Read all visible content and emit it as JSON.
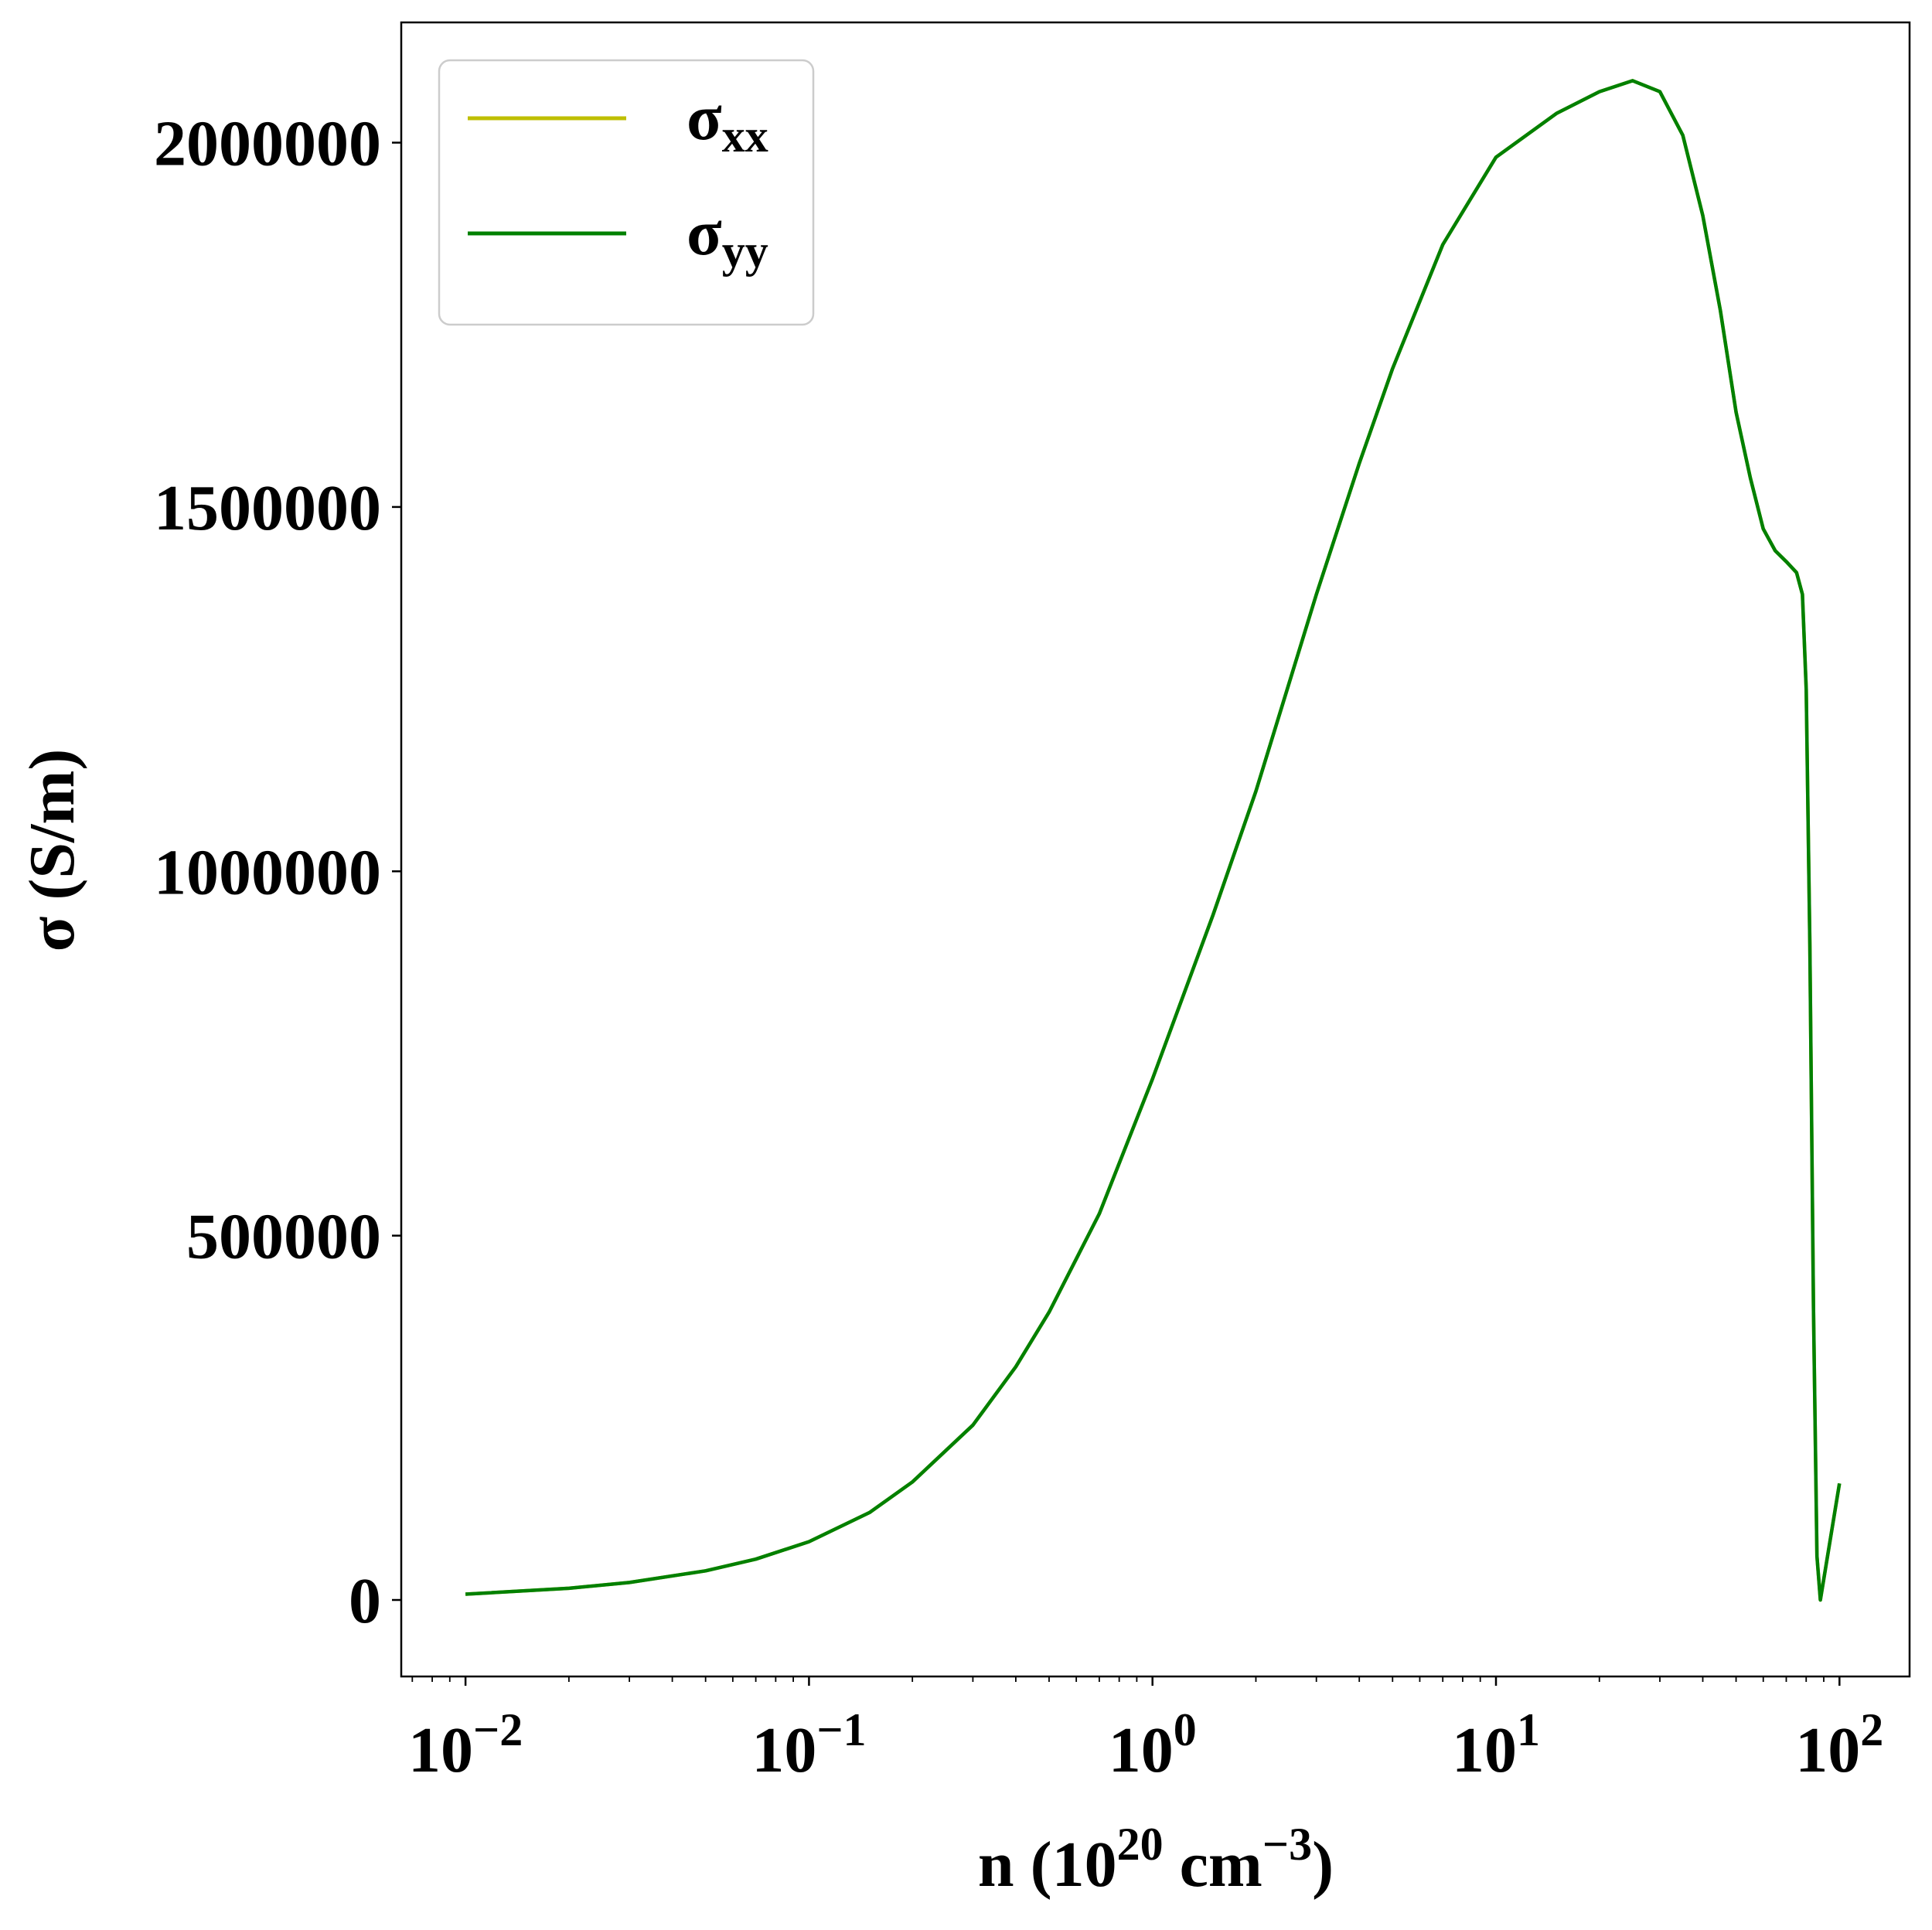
{
  "chart_data": {
    "type": "line",
    "title": "",
    "xlabel": {
      "base": "n (10",
      "sup1": "20",
      "mid": " cm",
      "sup2": "−3",
      "end": ")"
    },
    "ylabel": "σ (S/m)",
    "xscale": "log",
    "xlim": [
      0.0065,
      160
    ],
    "ylim": [
      -105000,
      2165000
    ],
    "grid": false,
    "legend_position": "top-left",
    "x_ticks": [
      {
        "value": 0.01,
        "base": "10",
        "exp": "−2"
      },
      {
        "value": 0.1,
        "base": "10",
        "exp": "−1"
      },
      {
        "value": 1,
        "base": "10",
        "exp": "0"
      },
      {
        "value": 10,
        "base": "10",
        "exp": "1"
      },
      {
        "value": 100,
        "base": "10",
        "exp": "2"
      }
    ],
    "y_ticks": [
      {
        "value": 0,
        "label": "0"
      },
      {
        "value": 500000,
        "label": "500000"
      },
      {
        "value": 1000000,
        "label": "1000000"
      },
      {
        "value": 1500000,
        "label": "1500000"
      },
      {
        "value": 2000000,
        "label": "2000000"
      }
    ],
    "series": [
      {
        "name": "σxx",
        "symbol": "σ",
        "subscript": "xx",
        "color": "#bfbf00",
        "x": [
          0.01,
          0.02,
          0.03,
          0.05,
          0.07,
          0.1,
          0.15,
          0.2,
          0.3,
          0.4,
          0.5,
          0.7,
          1,
          1.5,
          2,
          3,
          4,
          5,
          7,
          10,
          15,
          20,
          25,
          30,
          35,
          40,
          45,
          50,
          55,
          60,
          65,
          70,
          75,
          78,
          80,
          82,
          84,
          86,
          88,
          100
        ],
        "y": [
          8000,
          16000,
          24000,
          40000,
          56000,
          80000,
          120000,
          162000,
          240000,
          320000,
          395000,
          530000,
          715000,
          940000,
          1110000,
          1380000,
          1560000,
          1690000,
          1860000,
          1980000,
          2040000,
          2070000,
          2085000,
          2070000,
          2010000,
          1900000,
          1770000,
          1630000,
          1540000,
          1470000,
          1440000,
          1425000,
          1410000,
          1380000,
          1250000,
          900000,
          400000,
          60000,
          0,
          160000
        ]
      },
      {
        "name": "σyy",
        "symbol": "σ",
        "subscript": "yy",
        "color": "#008000",
        "x": [
          0.01,
          0.02,
          0.03,
          0.05,
          0.07,
          0.1,
          0.15,
          0.2,
          0.3,
          0.4,
          0.5,
          0.7,
          1,
          1.5,
          2,
          3,
          4,
          5,
          7,
          10,
          15,
          20,
          25,
          30,
          35,
          40,
          45,
          50,
          55,
          60,
          65,
          70,
          75,
          78,
          80,
          82,
          84,
          86,
          88,
          100
        ],
        "y": [
          8000,
          16000,
          24000,
          40000,
          56000,
          80000,
          120000,
          162000,
          240000,
          320000,
          395000,
          530000,
          715000,
          940000,
          1110000,
          1380000,
          1560000,
          1690000,
          1860000,
          1980000,
          2040000,
          2070000,
          2085000,
          2070000,
          2010000,
          1900000,
          1770000,
          1630000,
          1540000,
          1470000,
          1440000,
          1425000,
          1410000,
          1380000,
          1250000,
          900000,
          400000,
          60000,
          0,
          160000
        ]
      }
    ]
  }
}
